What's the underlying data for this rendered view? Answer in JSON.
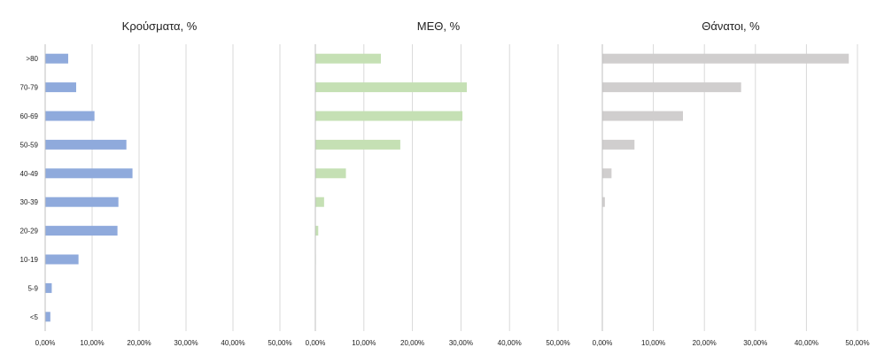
{
  "chart_data": [
    {
      "type": "bar",
      "orientation": "horizontal",
      "title": "Κρούσματα, %",
      "categories": [
        ">80",
        "70-79",
        "60-69",
        "50-59",
        "40-49",
        "30-39",
        "20-29",
        "10-19",
        "5-9",
        "<5"
      ],
      "values": [
        4.9,
        6.6,
        10.5,
        17.3,
        18.6,
        15.6,
        15.4,
        7.1,
        1.4,
        1.1
      ],
      "xlim": [
        0,
        50
      ],
      "xticks": [
        "0,00%",
        "10,00%",
        "20,00%",
        "30,00%",
        "40,00%",
        "50,00%"
      ],
      "color": "#8faadc",
      "grid": true
    },
    {
      "type": "bar",
      "orientation": "horizontal",
      "title": "ΜΕΘ, %",
      "categories": [
        ">80",
        "70-79",
        "60-69",
        "50-59",
        "40-49",
        "30-39",
        "20-29",
        "10-19",
        "5-9",
        "<5"
      ],
      "values": [
        13.5,
        31.2,
        30.3,
        17.5,
        6.3,
        1.8,
        0.6,
        0.1,
        0,
        0
      ],
      "xlim": [
        0,
        50
      ],
      "xticks": [
        "0,00%",
        "10,00%",
        "20,00%",
        "30,00%",
        "40,00%",
        "50,00%"
      ],
      "color": "#c5e0b4",
      "grid": true
    },
    {
      "type": "bar",
      "orientation": "horizontal",
      "title": "Θάνατοι, %",
      "categories": [
        ">80",
        "70-79",
        "60-69",
        "50-59",
        "40-49",
        "30-39",
        "20-29",
        "10-19",
        "5-9",
        "<5"
      ],
      "values": [
        48.3,
        27.2,
        15.8,
        6.3,
        1.8,
        0.5,
        0,
        0,
        0,
        0
      ],
      "xlim": [
        0,
        50
      ],
      "xticks": [
        "0,00%",
        "10,00%",
        "20,00%",
        "30,00%",
        "40,00%",
        "50,00%"
      ],
      "color": "#d0cece",
      "grid": true
    }
  ]
}
